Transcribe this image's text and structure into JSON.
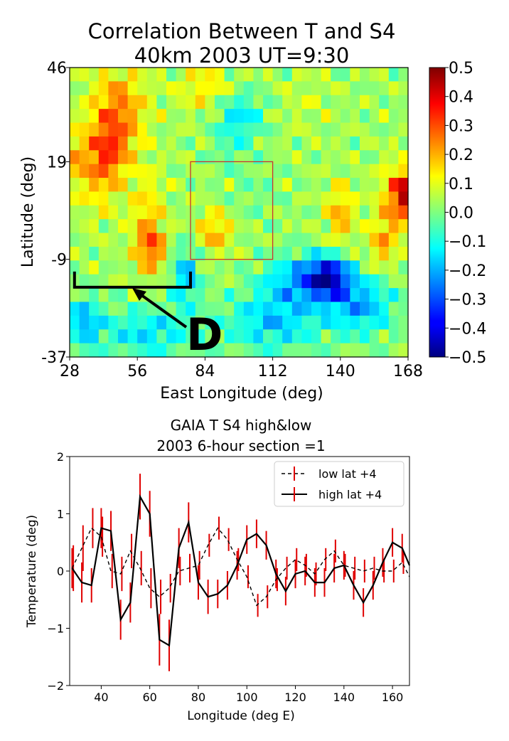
{
  "chart_data": [
    {
      "type": "heatmap",
      "title": "Correlation Between T and S4",
      "subtitle": "40km 2003 UT=9:30",
      "xlabel": "East Longitude (deg)",
      "ylabel": "Latitude (deg)",
      "xlim": [
        28,
        168
      ],
      "ylim": [
        -37,
        46
      ],
      "x_ticks": [
        "28",
        "56",
        "84",
        "112",
        "140",
        "168"
      ],
      "y_ticks": [
        "46",
        "19",
        "-9",
        "-37"
      ],
      "colorbar": {
        "min": -0.5,
        "max": 0.5,
        "colormap": "jet",
        "ticks": [
          "0.5",
          "0.4",
          "0.3",
          "0.2",
          "0.1",
          "0.0",
          "−0.1",
          "−0.2",
          "−0.3",
          "−0.4",
          "−0.5"
        ]
      },
      "grid_size": [
        35,
        21
      ],
      "box": {
        "lon": [
          78,
          112
        ],
        "lat": [
          -9,
          19
        ],
        "color": "#c83232"
      },
      "annotation": {
        "text": "D",
        "bracket_lon": [
          30,
          78
        ],
        "bracket_lat": -17
      }
    },
    {
      "type": "line",
      "title": "GAIA T S4 high&low",
      "subtitle": "2003 6-hour section =1",
      "xlabel": "Longitude (deg E)",
      "ylabel": "Temperature (deg)",
      "xlim": [
        27,
        167
      ],
      "ylim": [
        -2,
        2
      ],
      "x_ticks": [
        "40",
        "60",
        "80",
        "100",
        "120",
        "140",
        "160"
      ],
      "y_ticks": [
        "2",
        "1",
        "0",
        "−1",
        "−2"
      ],
      "legend_position": "top-right",
      "x": [
        28,
        32,
        36,
        40,
        44,
        48,
        52,
        56,
        60,
        64,
        68,
        72,
        76,
        80,
        84,
        88,
        92,
        96,
        100,
        104,
        108,
        112,
        116,
        120,
        124,
        128,
        132,
        136,
        140,
        144,
        148,
        152,
        156,
        160,
        164,
        168
      ],
      "series": [
        {
          "name": "low lat +4",
          "style": "dashed",
          "color": "#000000",
          "errcolor": "#e00000",
          "values": [
            0.05,
            0.4,
            0.75,
            0.6,
            0.0,
            -0.05,
            0.35,
            0.05,
            -0.3,
            -0.45,
            -0.3,
            0.0,
            0.05,
            0.1,
            0.45,
            0.75,
            0.55,
            0.2,
            -0.1,
            -0.6,
            -0.45,
            -0.15,
            0.05,
            0.2,
            0.1,
            -0.05,
            0.2,
            0.35,
            0.1,
            0.05,
            0.0,
            0.05,
            0.0,
            0.0,
            0.15,
            -0.1
          ],
          "err": [
            0.4,
            0.4,
            0.35,
            0.35,
            0.3,
            0.3,
            0.3,
            0.3,
            0.35,
            0.3,
            0.25,
            0.25,
            0.25,
            0.25,
            0.2,
            0.2,
            0.2,
            0.2,
            0.2,
            0.2,
            0.2,
            0.2,
            0.2,
            0.2,
            0.2,
            0.2,
            0.2,
            0.2,
            0.2,
            0.2,
            0.2,
            0.2,
            0.2,
            0.2,
            0.2,
            0.2
          ]
        },
        {
          "name": "high lat +4",
          "style": "solid",
          "color": "#000000",
          "errcolor": "#e00000",
          "values": [
            0.05,
            -0.2,
            -0.25,
            0.75,
            0.7,
            -0.85,
            -0.55,
            1.3,
            1.0,
            -1.2,
            -1.3,
            0.4,
            0.85,
            -0.2,
            -0.45,
            -0.4,
            -0.25,
            0.1,
            0.55,
            0.65,
            0.45,
            -0.05,
            -0.35,
            -0.05,
            0.0,
            -0.2,
            -0.2,
            0.05,
            0.1,
            -0.25,
            -0.55,
            -0.25,
            0.15,
            0.5,
            0.4,
            0.1
          ],
          "err": [
            0.35,
            0.35,
            0.3,
            0.35,
            0.35,
            0.35,
            0.35,
            0.4,
            0.4,
            0.45,
            0.45,
            0.35,
            0.35,
            0.3,
            0.3,
            0.25,
            0.25,
            0.25,
            0.25,
            0.25,
            0.25,
            0.25,
            0.25,
            0.25,
            0.25,
            0.25,
            0.25,
            0.25,
            0.25,
            0.25,
            0.25,
            0.25,
            0.25,
            0.25,
            0.25,
            0.2
          ]
        }
      ]
    }
  ]
}
